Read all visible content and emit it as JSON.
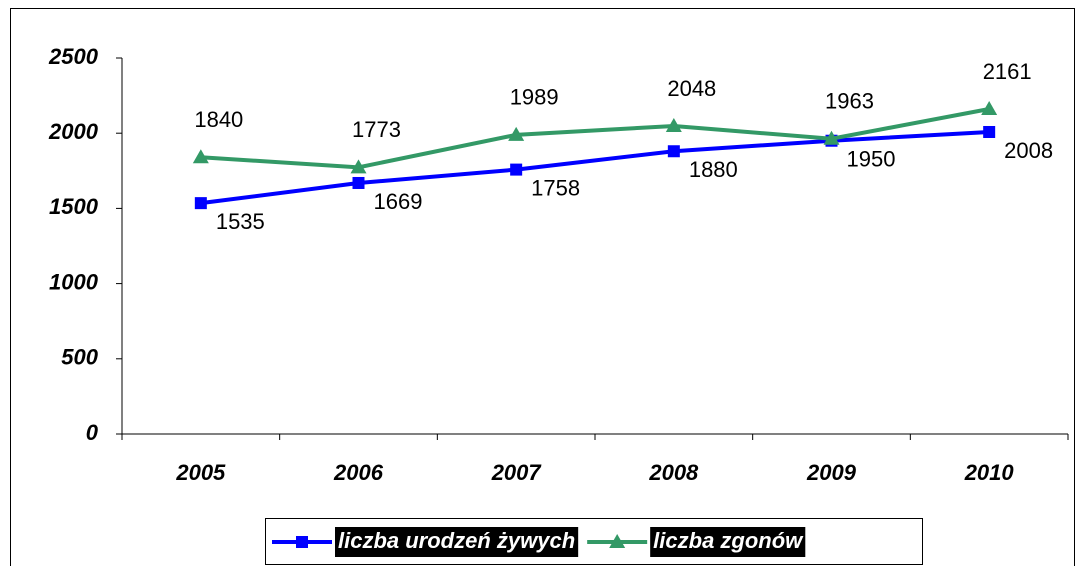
{
  "chart_data": {
    "type": "line",
    "categories": [
      "2005",
      "2006",
      "2007",
      "2008",
      "2009",
      "2010"
    ],
    "series": [
      {
        "name": "liczba urodzeń żywych",
        "color": "#0000ff",
        "marker": "square",
        "values": [
          1535,
          1669,
          1758,
          1880,
          1950,
          2008
        ]
      },
      {
        "name": "liczba zgonów",
        "color": "#339966",
        "marker": "triangle",
        "values": [
          1840,
          1773,
          1989,
          2048,
          1963,
          2161
        ]
      }
    ],
    "ylim": [
      0,
      2500
    ],
    "yticks": [
      0,
      500,
      1000,
      1500,
      2000,
      2500
    ],
    "grid": false,
    "legend": "bottom"
  }
}
